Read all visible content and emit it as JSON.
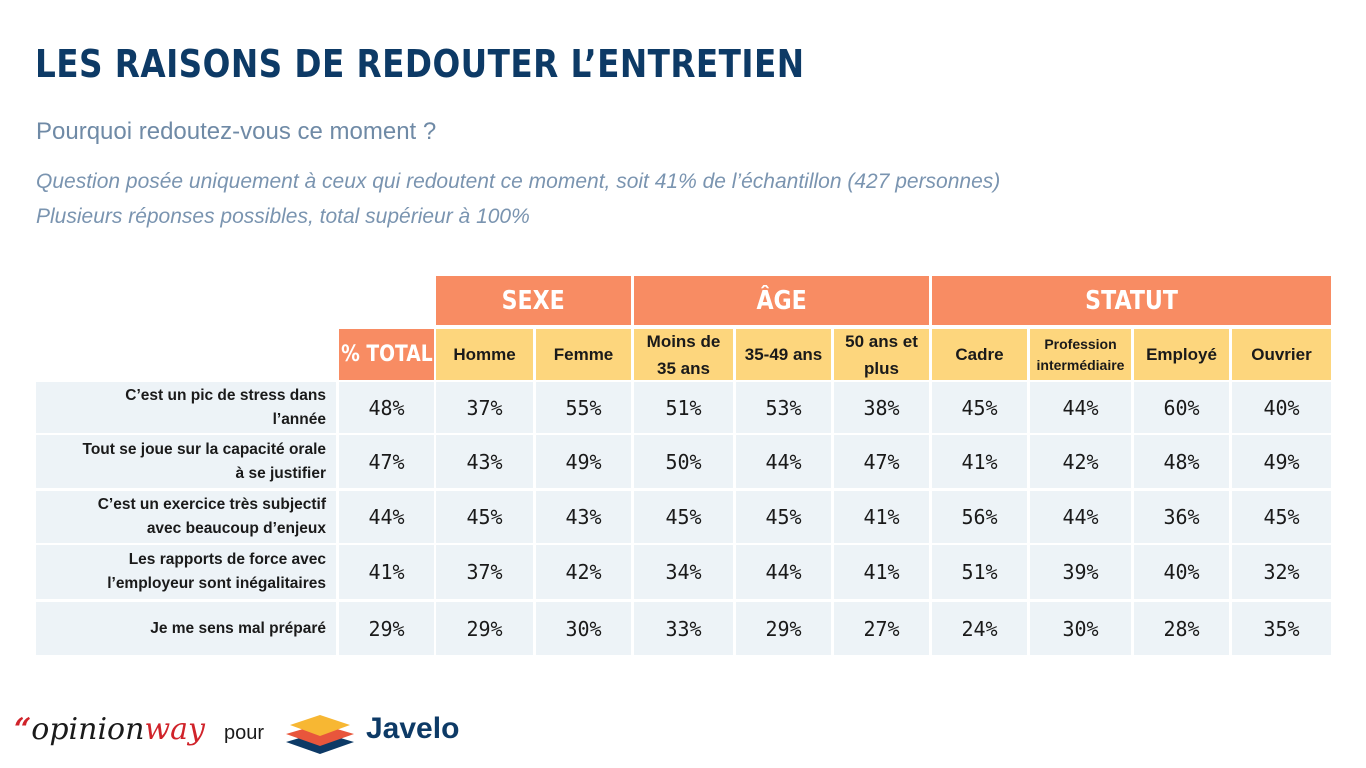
{
  "title": "LES RAISONS DE REDOUTER L’ENTRETIEN",
  "subtitle": "Pourquoi redoutez-vous ce moment ?",
  "notes": [
    "Question posée uniquement à ceux qui redoutent ce moment, soit 41% de l’échantillon (427 personnes)",
    "Plusieurs réponses possibles, total supérieur à 100%"
  ],
  "table": {
    "groups": [
      {
        "label": "SEXE"
      },
      {
        "label": "ÂGE"
      },
      {
        "label": "STATUT"
      }
    ],
    "total_label": "% TOTAL",
    "columns": [
      {
        "lines": [
          "Homme"
        ]
      },
      {
        "lines": [
          "Femme"
        ]
      },
      {
        "lines": [
          "Moins de",
          "35 ans"
        ]
      },
      {
        "lines": [
          "35-49 ans"
        ]
      },
      {
        "lines": [
          "50 ans et",
          "plus"
        ]
      },
      {
        "lines": [
          "Cadre"
        ]
      },
      {
        "lines": [
          "Profession",
          "intermédiaire"
        ]
      },
      {
        "lines": [
          "Employé"
        ]
      },
      {
        "lines": [
          "Ouvrier"
        ]
      }
    ],
    "rows": [
      {
        "label": [
          "C’est un pic de stress dans",
          "l’année"
        ],
        "values": [
          "48%",
          "37%",
          "55%",
          "51%",
          "53%",
          "38%",
          "45%",
          "44%",
          "60%",
          "40%"
        ]
      },
      {
        "label": [
          "Tout se joue sur la capacité orale",
          "à se justifier"
        ],
        "values": [
          "47%",
          "43%",
          "49%",
          "50%",
          "44%",
          "47%",
          "41%",
          "42%",
          "48%",
          "49%"
        ]
      },
      {
        "label": [
          "C’est un exercice très subjectif",
          "avec beaucoup d’enjeux"
        ],
        "values": [
          "44%",
          "45%",
          "43%",
          "45%",
          "45%",
          "41%",
          "56%",
          "44%",
          "36%",
          "45%"
        ]
      },
      {
        "label": [
          "Les rapports de force avec",
          "l’employeur sont inégalitaires"
        ],
        "values": [
          "41%",
          "37%",
          "42%",
          "34%",
          "44%",
          "41%",
          "51%",
          "39%",
          "40%",
          "32%"
        ]
      },
      {
        "label": [
          "Je me sens mal préparé"
        ],
        "values": [
          "29%",
          "29%",
          "30%",
          "33%",
          "29%",
          "27%",
          "24%",
          "30%",
          "28%",
          "35%"
        ]
      }
    ]
  },
  "footer": {
    "opinionway_quote": "“",
    "opinionway_opinion": "opinion",
    "opinionway_way": "way",
    "pour": "pour",
    "javelo": "Javelo"
  }
}
